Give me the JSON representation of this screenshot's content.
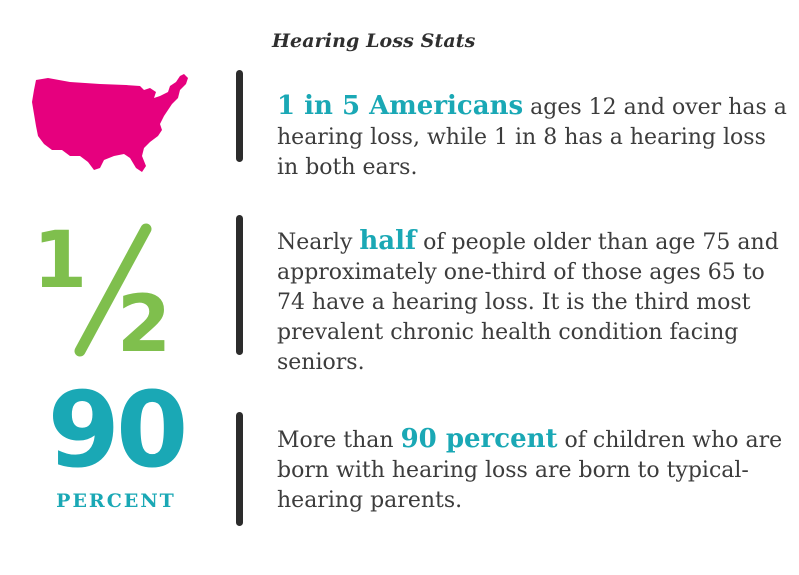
{
  "title": "Hearing Loss Stats",
  "colors": {
    "accent_teal": "#1aa8b5",
    "accent_green": "#7fbf4d",
    "map_magenta": "#e6007e",
    "divider": "#2c2c2c",
    "body_text": "#3c3c3c"
  },
  "stats": [
    {
      "icon": "us-map-icon",
      "highlight": "1 in 5 Americans",
      "pre": "",
      "post": " ages 12 and over has a hearing loss, while 1 in 8 has a hearing loss in both ears."
    },
    {
      "icon": "one-half-fraction-icon",
      "fraction_numerator": "1",
      "fraction_denominator": "2",
      "highlight": "half",
      "pre": "Nearly ",
      "post": " of people older than age 75 and approximately one-third of those ages 65 to 74 have a hearing loss. It is the third most prevalent chronic health condition facing seniors."
    },
    {
      "icon": "ninety-percent-figure",
      "big_number": "90",
      "big_label": "PERCENT",
      "highlight": "90 percent",
      "pre": "More than ",
      "post": " of children who are born with hearing loss are born to typical-hearing parents."
    }
  ]
}
